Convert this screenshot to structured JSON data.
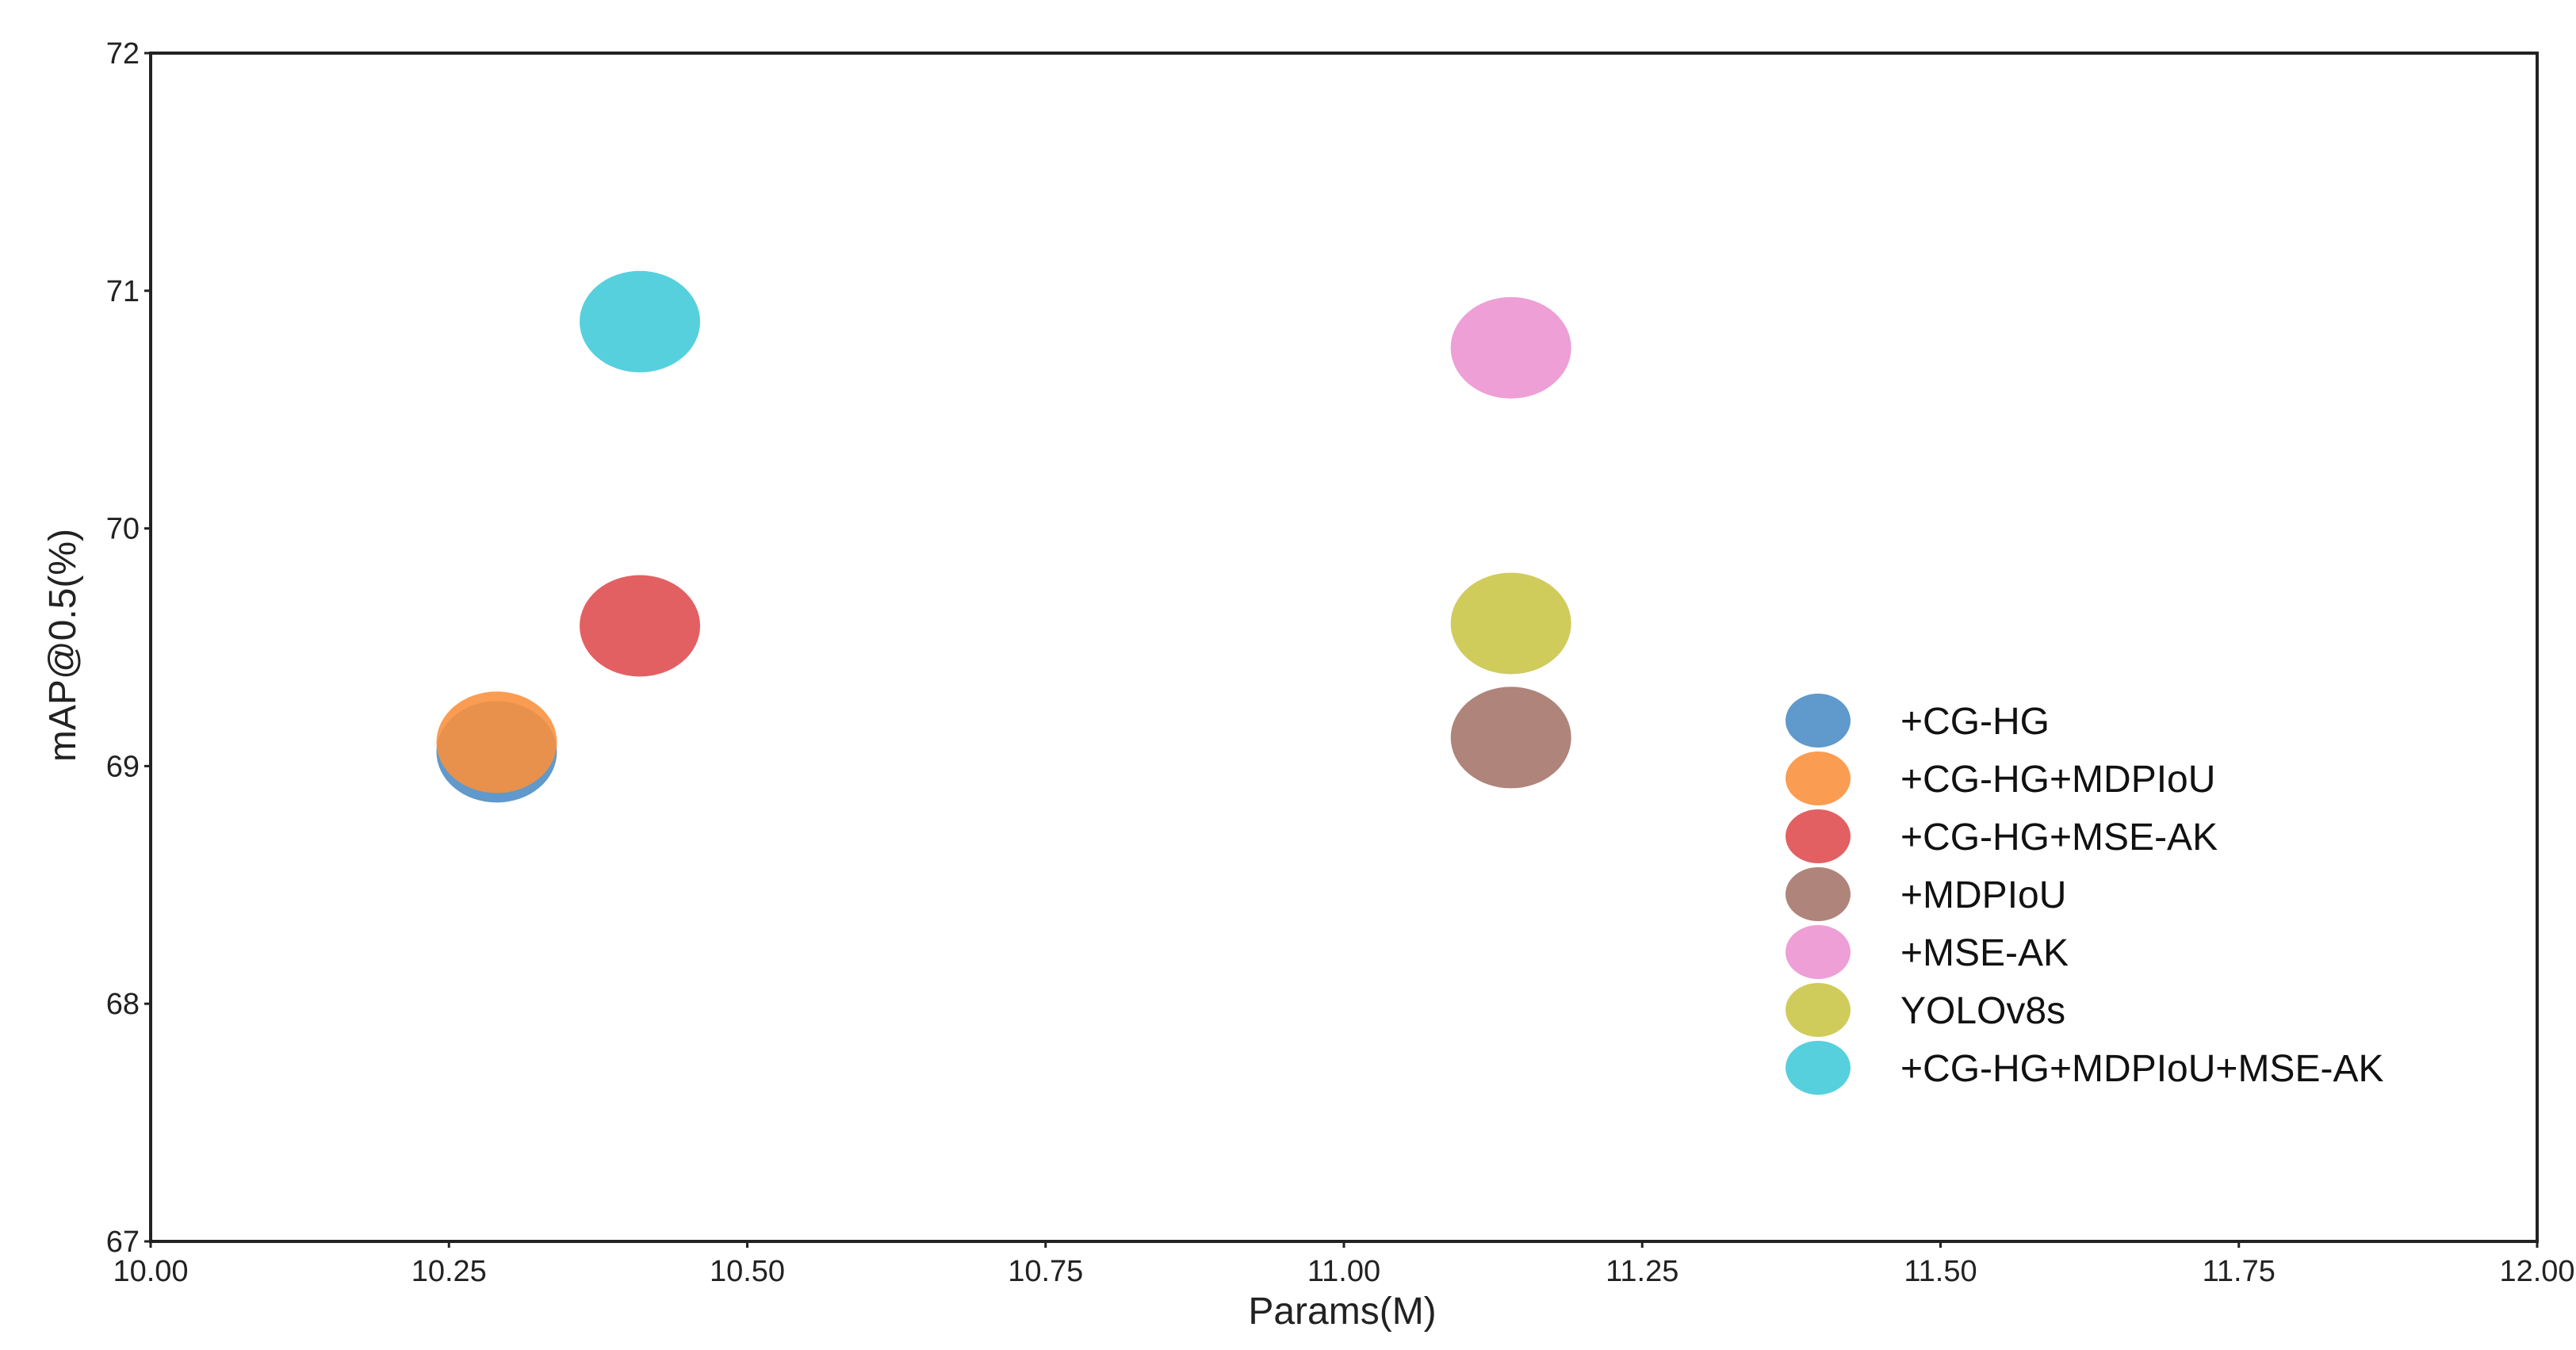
{
  "chart_data": {
    "type": "scatter",
    "xlabel": "Params(M)",
    "ylabel": "mAP@0.5(%)",
    "xlim": [
      10.0,
      12.0
    ],
    "ylim": [
      67,
      72
    ],
    "x_ticks": [
      "10.00",
      "10.25",
      "10.50",
      "10.75",
      "11.00",
      "11.25",
      "11.50",
      "11.75",
      "12.00"
    ],
    "y_ticks": [
      "67",
      "68",
      "69",
      "70",
      "71",
      "72"
    ],
    "grid": false,
    "legend_position": "right",
    "series": [
      {
        "name": "+CG-HG",
        "color": "#4a8bc4",
        "x": 10.29,
        "y": 69.06
      },
      {
        "name": "+CG-HG+MDPIoU",
        "color": "#f9903a",
        "x": 10.29,
        "y": 69.1
      },
      {
        "name": "+CG-HG+MSE-AK",
        "color": "#df4a4c",
        "x": 10.41,
        "y": 69.59
      },
      {
        "name": "+MDPIoU",
        "color": "#a47368",
        "x": 11.14,
        "y": 69.12
      },
      {
        "name": "+MSE-AK",
        "color": "#ea92d0",
        "x": 11.14,
        "y": 70.76
      },
      {
        "name": "YOLOv8s",
        "color": "#c8c545",
        "x": 11.14,
        "y": 69.6
      },
      {
        "name": "+CG-HG+MDPIoU+MSE-AK",
        "color": "#3fc9d8",
        "x": 10.41,
        "y": 70.87
      }
    ]
  }
}
